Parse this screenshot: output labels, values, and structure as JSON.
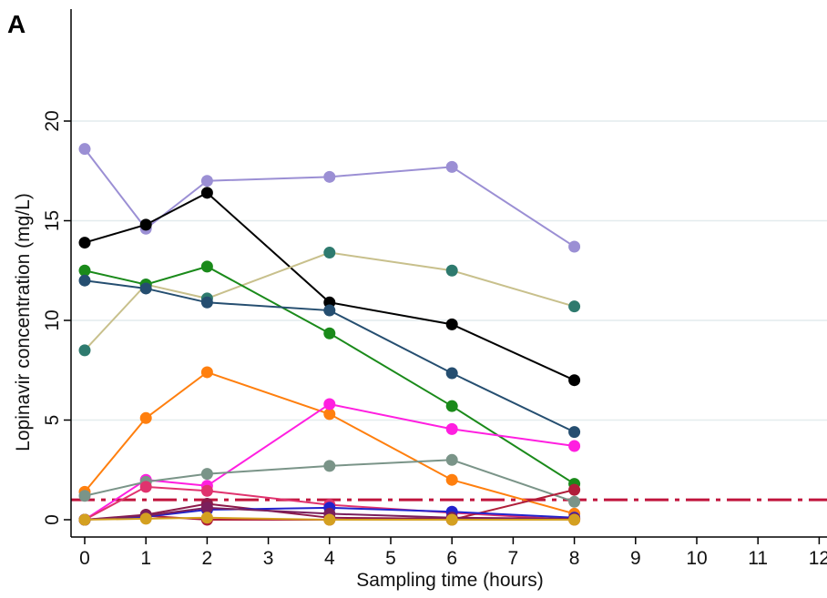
{
  "chart_data": {
    "type": "line",
    "panel_label": "A",
    "title": "",
    "xlabel": "Sampling time (hours)",
    "ylabel": "Lopinavir concentration (mg/L)",
    "xlim": [
      0,
      12
    ],
    "ylim": [
      0,
      20
    ],
    "x_ticks": [
      0,
      1,
      2,
      3,
      4,
      5,
      6,
      7,
      8,
      9,
      10,
      11,
      12
    ],
    "y_ticks": [
      0,
      5,
      10,
      15,
      20
    ],
    "grid": "horizontal",
    "reference_line": {
      "y": 1.0,
      "style": "dash-dot",
      "color": "#c0143c"
    },
    "x": [
      0,
      1,
      2,
      4,
      6,
      8
    ],
    "series": [
      {
        "color": "#9b8fd4",
        "values": [
          18.6,
          14.6,
          17.0,
          17.2,
          17.7,
          13.7
        ]
      },
      {
        "color": "#000000",
        "values": [
          13.9,
          14.8,
          16.4,
          10.9,
          9.8,
          7.0
        ]
      },
      {
        "color": "#c8c08c",
        "marker_color": "#2e7a6e",
        "values": [
          8.5,
          11.8,
          11.1,
          13.4,
          12.5,
          10.7
        ]
      },
      {
        "color": "#1a8a1a",
        "values": [
          12.5,
          11.8,
          12.7,
          9.35,
          5.7,
          1.8
        ]
      },
      {
        "color": "#254e70",
        "values": [
          12.0,
          11.6,
          10.9,
          10.5,
          7.35,
          4.4
        ]
      },
      {
        "color": "#ff7f0e",
        "values": [
          1.4,
          5.1,
          7.4,
          5.3,
          2.0,
          0.3
        ]
      },
      {
        "color": "#ff1fe0",
        "values": [
          0.0,
          2.0,
          1.7,
          5.8,
          4.55,
          3.7
        ]
      },
      {
        "color": "#7a9488",
        "values": [
          1.2,
          1.9,
          2.3,
          2.7,
          3.0,
          0.9
        ]
      },
      {
        "color": "#e0336e",
        "values": [
          0.0,
          1.65,
          1.45,
          0.75,
          0.35,
          0.0
        ]
      },
      {
        "color": "#b01e3a",
        "values": [
          0.0,
          0.2,
          0.0,
          0.0,
          0.0,
          1.5
        ]
      },
      {
        "color": "#8b1a4a",
        "values": [
          0.0,
          0.25,
          0.8,
          0.1,
          0.05,
          0.05
        ]
      },
      {
        "color": "#2222cc",
        "values": [
          0.0,
          0.15,
          0.5,
          0.6,
          0.4,
          0.1
        ]
      },
      {
        "color": "#7a1f5c",
        "values": [
          0.0,
          0.2,
          0.6,
          0.3,
          0.1,
          0.05
        ]
      },
      {
        "color": "#d4a020",
        "values": [
          0.0,
          0.05,
          0.1,
          0.0,
          0.0,
          0.0
        ]
      }
    ]
  }
}
